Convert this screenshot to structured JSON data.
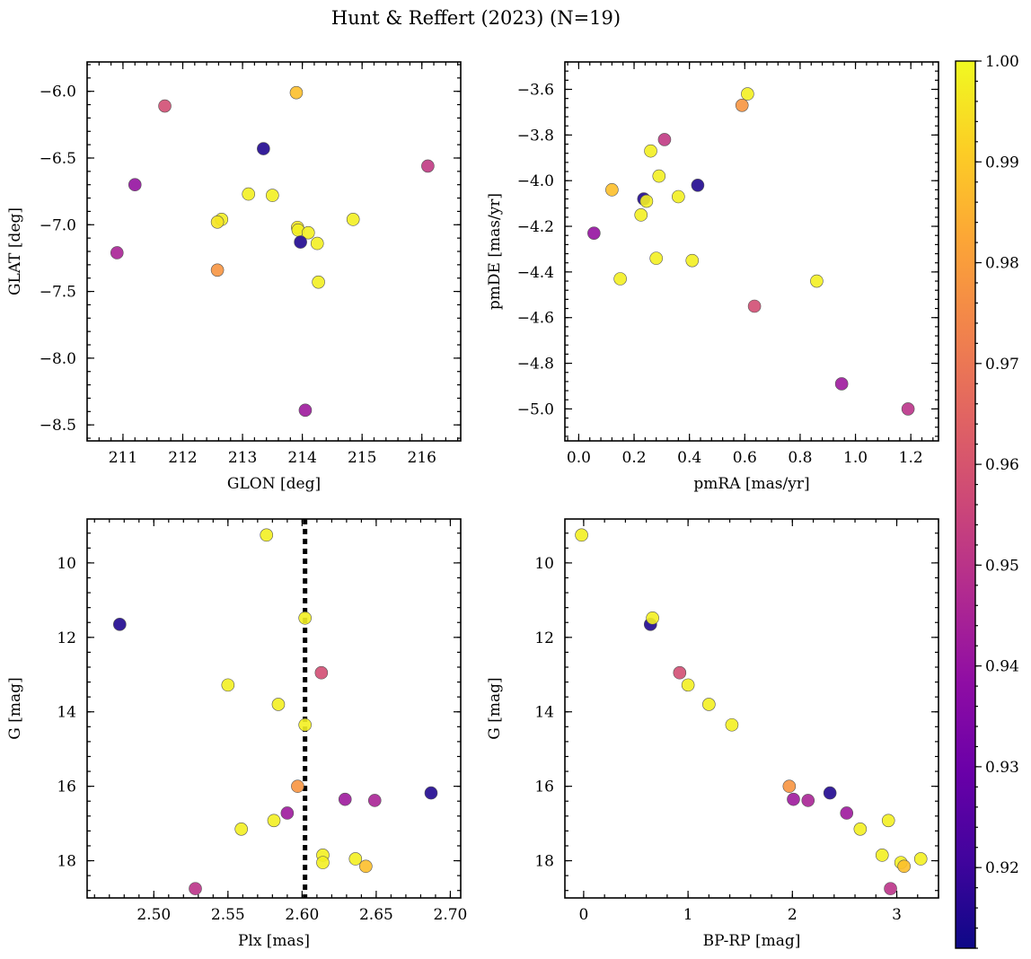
{
  "chart_data": {
    "title": "Hunt & Reffert (2023) (N=19)",
    "type": "scatter",
    "colorbar": {
      "min": 0.912,
      "max": 1.0,
      "ticks": [
        0.92,
        0.93,
        0.94,
        0.95,
        0.96,
        0.97,
        0.98,
        0.99,
        1.0
      ],
      "tick_labels": [
        "0.92",
        "0.93",
        "0.94",
        "0.95",
        "0.96",
        "0.97",
        "0.98",
        "0.99",
        "1.00"
      ],
      "colormap": "plasma"
    },
    "panels": [
      {
        "id": "glon-glat",
        "xlabel": "GLON [deg]",
        "ylabel": "GLAT [deg]",
        "xlim": [
          210.4,
          216.65
        ],
        "ylim": [
          -8.62,
          -5.78
        ],
        "invert_y": false,
        "xticks": [
          211,
          212,
          213,
          214,
          215,
          216
        ],
        "xtick_labels": [
          "211",
          "212",
          "213",
          "214",
          "215",
          "216"
        ],
        "yticks": [
          -6.0,
          -6.5,
          -7.0,
          -7.5,
          -8.0,
          -8.5
        ],
        "ytick_labels": [
          "−6.0",
          "−6.5",
          "−7.0",
          "−7.5",
          "−8.0",
          "−8.5"
        ],
        "points": [
          {
            "x": 213.9,
            "y": -6.01,
            "c": 0.988
          },
          {
            "x": 211.7,
            "y": -6.11,
            "c": 0.958
          },
          {
            "x": 213.35,
            "y": -6.43,
            "c": 0.915
          },
          {
            "x": 216.1,
            "y": -6.56,
            "c": 0.952
          },
          {
            "x": 211.2,
            "y": -6.7,
            "c": 0.94
          },
          {
            "x": 213.1,
            "y": -6.77,
            "c": 0.998
          },
          {
            "x": 213.5,
            "y": -6.78,
            "c": 0.998
          },
          {
            "x": 214.85,
            "y": -6.96,
            "c": 0.998
          },
          {
            "x": 212.65,
            "y": -6.96,
            "c": 0.998
          },
          {
            "x": 212.58,
            "y": -6.98,
            "c": 0.996
          },
          {
            "x": 213.92,
            "y": -7.02,
            "c": 0.996
          },
          {
            "x": 213.93,
            "y": -7.04,
            "c": 0.998
          },
          {
            "x": 214.1,
            "y": -7.06,
            "c": 0.998
          },
          {
            "x": 213.97,
            "y": -7.13,
            "c": 0.915
          },
          {
            "x": 214.25,
            "y": -7.14,
            "c": 0.998
          },
          {
            "x": 210.9,
            "y": -7.21,
            "c": 0.945
          },
          {
            "x": 212.58,
            "y": -7.34,
            "c": 0.978
          },
          {
            "x": 214.27,
            "y": -7.43,
            "c": 0.998
          },
          {
            "x": 214.05,
            "y": -8.39,
            "c": 0.942
          }
        ]
      },
      {
        "id": "pmra-pmde",
        "xlabel": "pmRA [mas/yr]",
        "ylabel": "pmDE [mas/yr]",
        "xlim": [
          -0.05,
          1.3
        ],
        "ylim": [
          -5.14,
          -3.48
        ],
        "invert_y": false,
        "xticks": [
          0.0,
          0.2,
          0.4,
          0.6,
          0.8,
          1.0,
          1.2
        ],
        "xtick_labels": [
          "0.0",
          "0.2",
          "0.4",
          "0.6",
          "0.8",
          "1.0",
          "1.2"
        ],
        "yticks": [
          -3.6,
          -3.8,
          -4.0,
          -4.2,
          -4.4,
          -4.6,
          -4.8,
          -5.0
        ],
        "ytick_labels": [
          "−3.6",
          "−3.8",
          "−4.0",
          "−4.2",
          "−4.4",
          "−4.6",
          "−4.8",
          "−5.0"
        ],
        "points": [
          {
            "x": 0.61,
            "y": -3.62,
            "c": 0.998
          },
          {
            "x": 0.59,
            "y": -3.67,
            "c": 0.978
          },
          {
            "x": 0.31,
            "y": -3.82,
            "c": 0.952
          },
          {
            "x": 0.26,
            "y": -3.87,
            "c": 0.998
          },
          {
            "x": 0.29,
            "y": -3.98,
            "c": 0.998
          },
          {
            "x": 0.43,
            "y": -4.02,
            "c": 0.915
          },
          {
            "x": 0.12,
            "y": -4.04,
            "c": 0.988
          },
          {
            "x": 0.36,
            "y": -4.07,
            "c": 0.998
          },
          {
            "x": 0.235,
            "y": -4.08,
            "c": 0.915
          },
          {
            "x": 0.245,
            "y": -4.09,
            "c": 0.998
          },
          {
            "x": 0.225,
            "y": -4.15,
            "c": 0.998
          },
          {
            "x": 0.055,
            "y": -4.23,
            "c": 0.94
          },
          {
            "x": 0.28,
            "y": -4.34,
            "c": 0.998
          },
          {
            "x": 0.41,
            "y": -4.35,
            "c": 0.998
          },
          {
            "x": 0.15,
            "y": -4.43,
            "c": 0.998
          },
          {
            "x": 0.86,
            "y": -4.44,
            "c": 0.998
          },
          {
            "x": 0.635,
            "y": -4.55,
            "c": 0.958
          },
          {
            "x": 0.95,
            "y": -4.89,
            "c": 0.942
          },
          {
            "x": 1.19,
            "y": -5.0,
            "c": 0.95
          }
        ]
      },
      {
        "id": "plx-g",
        "xlabel": "Plx [mas]",
        "ylabel": "G [mag]",
        "xlim": [
          2.455,
          2.707
        ],
        "ylim": [
          8.82,
          19.0
        ],
        "invert_y": true,
        "xticks": [
          2.5,
          2.55,
          2.6,
          2.65,
          2.7
        ],
        "xtick_labels": [
          "2.50",
          "2.55",
          "2.60",
          "2.65",
          "2.70"
        ],
        "yticks": [
          10,
          12,
          14,
          16,
          18
        ],
        "ytick_labels": [
          "10",
          "12",
          "14",
          "16",
          "18"
        ],
        "vline": 2.602,
        "points": [
          {
            "x": 2.576,
            "y": 9.25,
            "c": 0.998
          },
          {
            "x": 2.477,
            "y": 11.65,
            "c": 0.915
          },
          {
            "x": 2.602,
            "y": 11.48,
            "c": 0.998
          },
          {
            "x": 2.613,
            "y": 12.95,
            "c": 0.958
          },
          {
            "x": 2.55,
            "y": 13.28,
            "c": 0.998
          },
          {
            "x": 2.584,
            "y": 13.8,
            "c": 0.998
          },
          {
            "x": 2.602,
            "y": 14.35,
            "c": 0.998
          },
          {
            "x": 2.597,
            "y": 16.0,
            "c": 0.978
          },
          {
            "x": 2.687,
            "y": 16.18,
            "c": 0.915
          },
          {
            "x": 2.629,
            "y": 16.35,
            "c": 0.942
          },
          {
            "x": 2.649,
            "y": 16.38,
            "c": 0.945
          },
          {
            "x": 2.59,
            "y": 16.72,
            "c": 0.942
          },
          {
            "x": 2.581,
            "y": 16.92,
            "c": 0.998
          },
          {
            "x": 2.559,
            "y": 17.15,
            "c": 0.998
          },
          {
            "x": 2.614,
            "y": 17.85,
            "c": 0.998
          },
          {
            "x": 2.614,
            "y": 18.05,
            "c": 0.998
          },
          {
            "x": 2.636,
            "y": 17.95,
            "c": 0.998
          },
          {
            "x": 2.643,
            "y": 18.15,
            "c": 0.988
          },
          {
            "x": 2.528,
            "y": 18.75,
            "c": 0.95
          }
        ]
      },
      {
        "id": "bprp-g",
        "xlabel": "BP-RP [mag]",
        "ylabel": "G [mag]",
        "xlim": [
          -0.18,
          3.4
        ],
        "ylim": [
          8.82,
          19.0
        ],
        "invert_y": true,
        "xticks": [
          0,
          1,
          2,
          3
        ],
        "xtick_labels": [
          "0",
          "1",
          "2",
          "3"
        ],
        "yticks": [
          10,
          12,
          14,
          16,
          18
        ],
        "ytick_labels": [
          "10",
          "12",
          "14",
          "16",
          "18"
        ],
        "points": [
          {
            "x": -0.02,
            "y": 9.25,
            "c": 0.998
          },
          {
            "x": 0.64,
            "y": 11.65,
            "c": 0.915
          },
          {
            "x": 0.66,
            "y": 11.48,
            "c": 0.998
          },
          {
            "x": 0.92,
            "y": 12.95,
            "c": 0.958
          },
          {
            "x": 1.0,
            "y": 13.28,
            "c": 0.998
          },
          {
            "x": 1.2,
            "y": 13.8,
            "c": 0.998
          },
          {
            "x": 1.42,
            "y": 14.35,
            "c": 0.998
          },
          {
            "x": 1.97,
            "y": 16.0,
            "c": 0.978
          },
          {
            "x": 2.36,
            "y": 16.18,
            "c": 0.915
          },
          {
            "x": 2.01,
            "y": 16.35,
            "c": 0.942
          },
          {
            "x": 2.15,
            "y": 16.38,
            "c": 0.945
          },
          {
            "x": 2.52,
            "y": 16.72,
            "c": 0.942
          },
          {
            "x": 2.92,
            "y": 16.92,
            "c": 0.998
          },
          {
            "x": 2.65,
            "y": 17.15,
            "c": 0.998
          },
          {
            "x": 2.86,
            "y": 17.85,
            "c": 0.998
          },
          {
            "x": 3.04,
            "y": 18.05,
            "c": 0.998
          },
          {
            "x": 3.23,
            "y": 17.95,
            "c": 0.998
          },
          {
            "x": 3.07,
            "y": 18.15,
            "c": 0.988
          },
          {
            "x": 2.94,
            "y": 18.75,
            "c": 0.95
          }
        ]
      }
    ]
  }
}
